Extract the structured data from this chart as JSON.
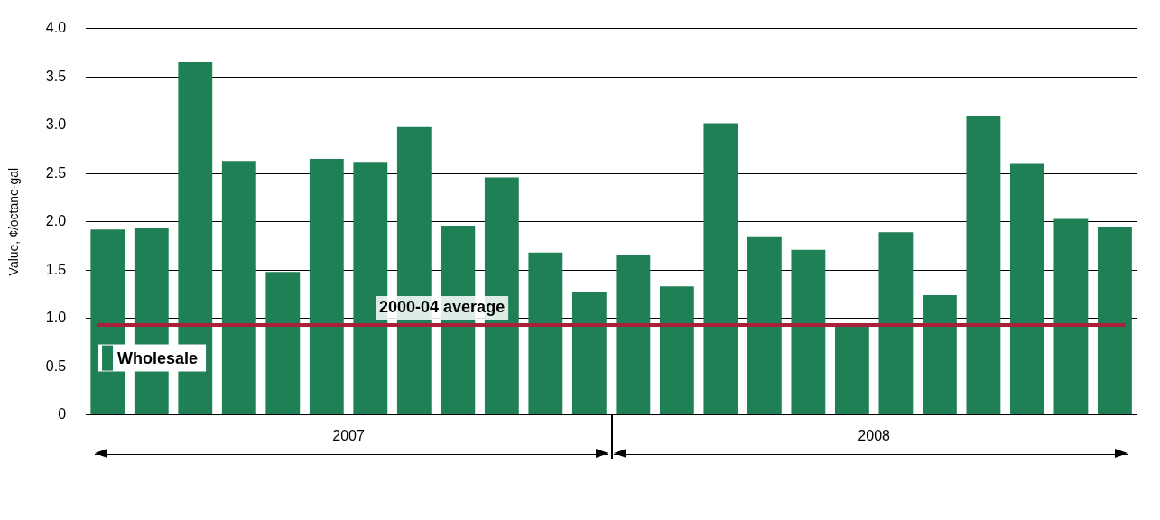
{
  "chart_data": {
    "type": "bar",
    "ylabel": "Value, ¢/octane-gal",
    "categories": [
      null,
      null,
      null,
      null,
      null,
      null,
      null,
      null,
      null,
      null,
      null,
      null,
      null,
      null,
      null,
      null,
      null,
      null,
      null,
      null,
      null,
      null,
      null,
      null
    ],
    "series": [
      {
        "name": "Wholesale",
        "color": "#1f7f55",
        "values": [
          1.92,
          1.93,
          3.65,
          2.63,
          1.48,
          2.65,
          2.62,
          2.98,
          1.96,
          2.46,
          1.68,
          1.27,
          1.65,
          1.33,
          3.02,
          1.85,
          1.71,
          0.94,
          1.89,
          1.24,
          3.1,
          2.6,
          2.03,
          1.95
        ]
      }
    ],
    "ylim": [
      0,
      4
    ],
    "yticks": [
      0,
      0.5,
      {
        "value": 1,
        "label": "1.0"
      },
      1.5,
      {
        "value": 2,
        "label": "2.0"
      },
      2.5,
      {
        "value": 3,
        "label": "3.0"
      },
      3.5,
      {
        "value": 4,
        "label": "4.0"
      }
    ],
    "ref_lines": [
      {
        "axis": "y",
        "value": 0.93,
        "label": "2000-04 average",
        "color": "#a8203a"
      }
    ],
    "annotations": [
      "2007",
      "2008"
    ],
    "grid": "y",
    "legend": "bottom left"
  }
}
